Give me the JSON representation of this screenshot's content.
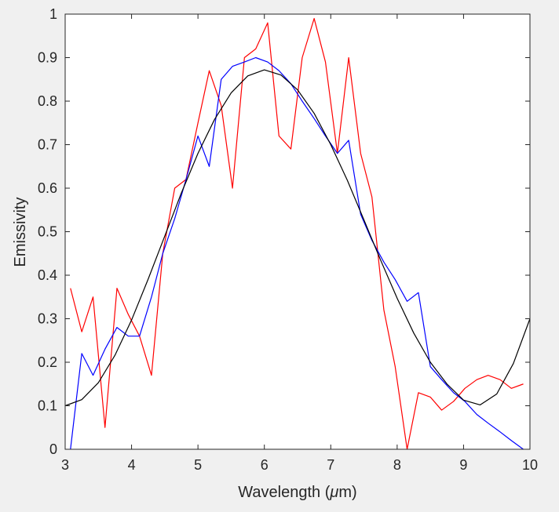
{
  "chart_data": {
    "type": "line",
    "title": "",
    "xlabel": "Wavelength (",
    "xlabel_mu": "μ",
    "xlabel_tail": "m)",
    "ylabel": "Emissivity",
    "xlim": [
      3,
      10
    ],
    "ylim": [
      0,
      1
    ],
    "xticks": [
      3,
      4,
      5,
      6,
      7,
      8,
      9,
      10
    ],
    "yticks": [
      0,
      0.1,
      0.2,
      0.3,
      0.4,
      0.5,
      0.6,
      0.7,
      0.8,
      0.9,
      1
    ],
    "xtick_labels": [
      "3",
      "4",
      "5",
      "6",
      "7",
      "8",
      "9",
      "10"
    ],
    "ytick_labels": [
      "0",
      "0.1",
      "0.2",
      "0.3",
      "0.4",
      "0.5",
      "0.6",
      "0.7",
      "0.8",
      "0.9",
      "1"
    ],
    "grid": false,
    "legend": "none",
    "series": [
      {
        "color": "#ff0000",
        "x": [
          3.08,
          3.25,
          3.42,
          3.6,
          3.78,
          3.95,
          4.12,
          4.3,
          4.47,
          4.65,
          4.82,
          5.0,
          5.17,
          5.35,
          5.52,
          5.7,
          5.87,
          6.05,
          6.22,
          6.4,
          6.57,
          6.75,
          6.92,
          7.1,
          7.27,
          7.45,
          7.62,
          7.8,
          7.97,
          8.15,
          8.32,
          8.5,
          8.67,
          8.85,
          9.02,
          9.2,
          9.37,
          9.55,
          9.72,
          9.9
        ],
        "y": [
          0.37,
          0.27,
          0.35,
          0.05,
          0.37,
          0.31,
          0.26,
          0.17,
          0.45,
          0.6,
          0.62,
          0.75,
          0.87,
          0.79,
          0.6,
          0.9,
          0.92,
          0.98,
          0.72,
          0.69,
          0.9,
          0.99,
          0.89,
          0.68,
          0.9,
          0.68,
          0.58,
          0.32,
          0.19,
          0.0,
          0.13,
          0.12,
          0.09,
          0.11,
          0.14,
          0.16,
          0.17,
          0.16,
          0.14,
          0.15
        ]
      },
      {
        "color": "#0000ff",
        "x": [
          3.08,
          3.25,
          3.42,
          3.6,
          3.78,
          3.95,
          4.12,
          4.3,
          4.47,
          4.65,
          4.82,
          5.0,
          5.17,
          5.35,
          5.52,
          5.7,
          5.87,
          6.05,
          6.22,
          6.4,
          6.57,
          6.75,
          6.92,
          7.1,
          7.27,
          7.45,
          7.62,
          7.8,
          7.97,
          8.15,
          8.32,
          8.5,
          8.67,
          8.85,
          9.02,
          9.2,
          9.37,
          9.55,
          9.72,
          9.9
        ],
        "y": [
          0.0,
          0.22,
          0.17,
          0.23,
          0.28,
          0.26,
          0.26,
          0.35,
          0.45,
          0.53,
          0.62,
          0.72,
          0.65,
          0.85,
          0.88,
          0.89,
          0.9,
          0.89,
          0.87,
          0.84,
          0.8,
          0.76,
          0.72,
          0.68,
          0.71,
          0.54,
          0.48,
          0.43,
          0.39,
          0.34,
          0.36,
          0.19,
          0.16,
          0.13,
          0.11,
          0.08,
          0.06,
          0.04,
          0.02,
          0.0
        ]
      },
      {
        "color": "#000000",
        "x": [
          3.0,
          3.25,
          3.5,
          3.75,
          4.0,
          4.25,
          4.5,
          4.75,
          5.0,
          5.25,
          5.5,
          5.75,
          6.0,
          6.25,
          6.5,
          6.75,
          7.0,
          7.25,
          7.5,
          7.75,
          8.0,
          8.25,
          8.5,
          8.75,
          9.0,
          9.25,
          9.5,
          9.75,
          10.0
        ],
        "y": [
          0.1,
          0.114,
          0.153,
          0.216,
          0.297,
          0.391,
          0.49,
          0.589,
          0.68,
          0.758,
          0.819,
          0.858,
          0.872,
          0.86,
          0.826,
          0.772,
          0.7,
          0.618,
          0.527,
          0.435,
          0.347,
          0.267,
          0.2,
          0.15,
          0.113,
          0.102,
          0.127,
          0.197,
          0.3
        ]
      }
    ]
  }
}
